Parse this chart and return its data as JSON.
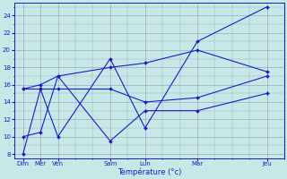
{
  "x_positions": [
    0,
    1,
    2,
    5,
    7,
    10,
    14
  ],
  "day_labels": [
    "Dim",
    "Mer",
    "Ven",
    "Sam",
    "Lun",
    "Mar",
    "Jeu"
  ],
  "line1_y": [
    8,
    15.5,
    10,
    19,
    11,
    21,
    25
  ],
  "line2_y": [
    10,
    10.5,
    17,
    9.5,
    13,
    13,
    15
  ],
  "line3_y": [
    15.5,
    16,
    17,
    18,
    18.5,
    20,
    17.5
  ],
  "line4_y": [
    15.5,
    15.5,
    15.5,
    15.5,
    14,
    14.5,
    17
  ],
  "line_color": "#1a1acc",
  "bg_color": "#c8e8e8",
  "grid_color": "#99aabb",
  "xlabel": "Température (°c)",
  "ylim": [
    7.5,
    25.5
  ],
  "yticks": [
    8,
    10,
    12,
    14,
    16,
    18,
    20,
    22,
    24
  ],
  "xlim": [
    -0.5,
    15
  ],
  "figsize": [
    3.2,
    2.0
  ],
  "dpi": 100
}
